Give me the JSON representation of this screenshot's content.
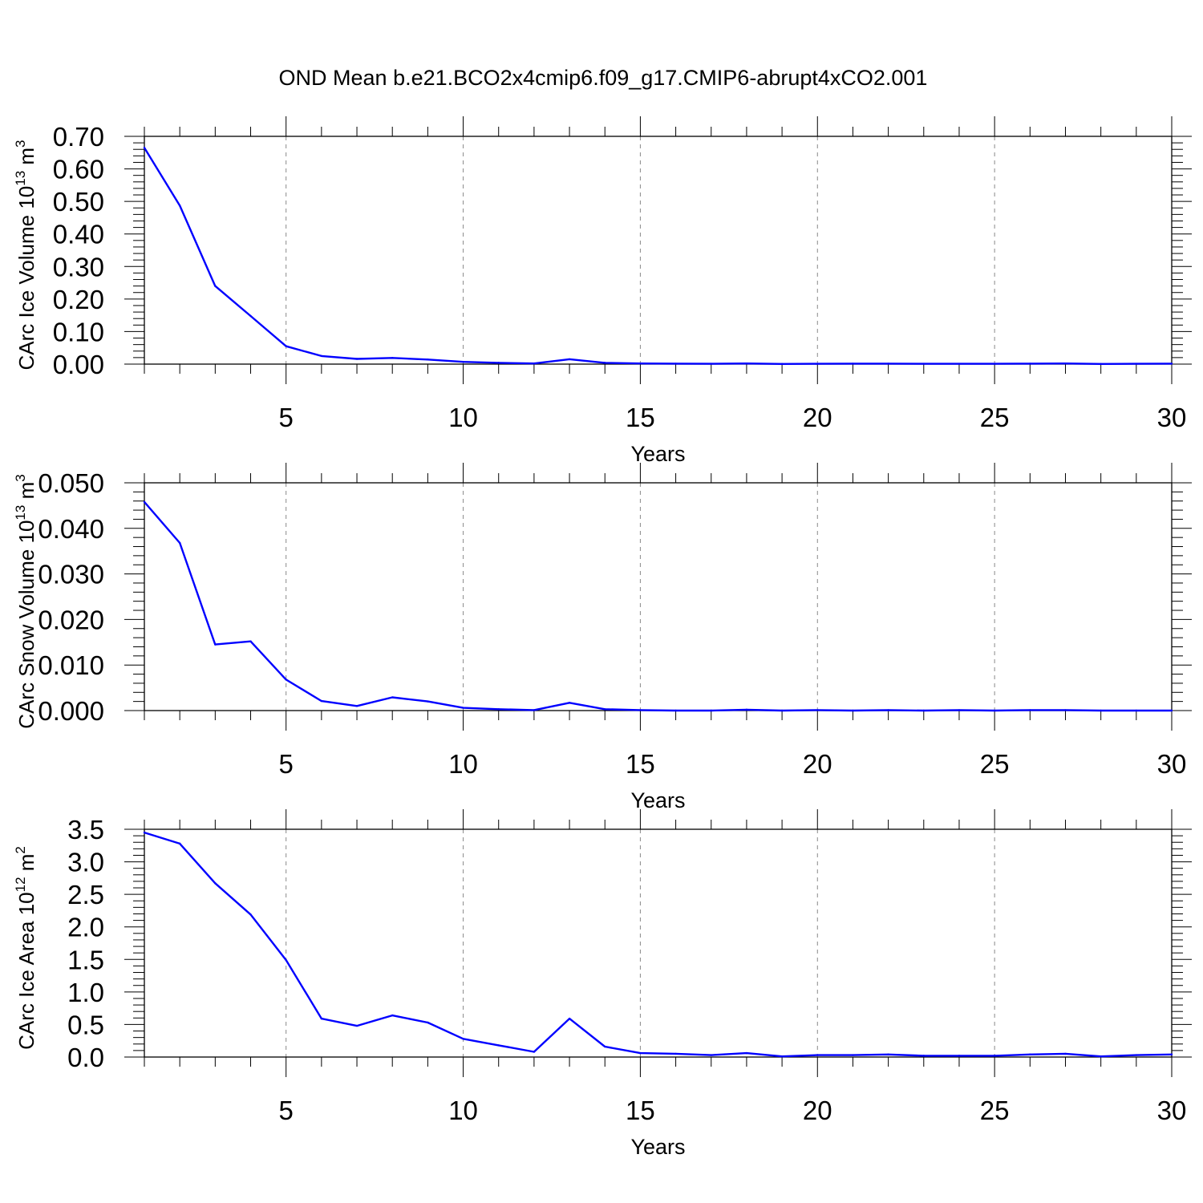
{
  "figure": {
    "title": "OND Mean b.e21.BCO2x4cmip6.f09_g17.CMIP6-abrupt4xCO2.001"
  },
  "chart_data": [
    {
      "type": "line",
      "title": "",
      "xlabel": "Years",
      "ylabel": {
        "text": "CArc Ice Volume 10",
        "sup": "13",
        "unit": " m",
        "unit_sup": "3"
      },
      "xlim": [
        1,
        30
      ],
      "ylim": [
        0,
        0.7
      ],
      "x_ticks": [
        5,
        10,
        15,
        20,
        25,
        30
      ],
      "y_ticks": [
        "0.00",
        "0.10",
        "0.20",
        "0.30",
        "0.40",
        "0.50",
        "0.60",
        "0.70"
      ],
      "grid": "vertical dashed at major x ticks",
      "line_color": "#0000ff",
      "series": [
        {
          "x": [
            1,
            2,
            3,
            4,
            5,
            6,
            7,
            8,
            9,
            10,
            11,
            12,
            13,
            14,
            15,
            16,
            17,
            18,
            19,
            20,
            21,
            22,
            23,
            24,
            25,
            26,
            27,
            28,
            29,
            30
          ],
          "values": [
            0.665,
            0.487,
            0.24,
            0.148,
            0.055,
            0.025,
            0.016,
            0.019,
            0.014,
            0.007,
            0.004,
            0.002,
            0.015,
            0.004,
            0.002,
            0.0015,
            0.001,
            0.002,
            0.0005,
            0.001,
            0.0015,
            0.0015,
            0.001,
            0.001,
            0.001,
            0.0015,
            0.002,
            0.0005,
            0.001,
            0.0015
          ]
        }
      ]
    },
    {
      "type": "line",
      "title": "",
      "xlabel": "Years",
      "ylabel": {
        "text": "CArc Snow Volume 10",
        "sup": "13",
        "unit": " m",
        "unit_sup": "3"
      },
      "xlim": [
        1,
        30
      ],
      "ylim": [
        0,
        0.05
      ],
      "x_ticks": [
        5,
        10,
        15,
        20,
        25,
        30
      ],
      "y_ticks": [
        "0.000",
        "0.010",
        "0.020",
        "0.030",
        "0.040",
        "0.050"
      ],
      "grid": "vertical dashed at major x ticks",
      "line_color": "#0000ff",
      "series": [
        {
          "x": [
            1,
            2,
            3,
            4,
            5,
            6,
            7,
            8,
            9,
            10,
            11,
            12,
            13,
            14,
            15,
            16,
            17,
            18,
            19,
            20,
            21,
            22,
            23,
            24,
            25,
            26,
            27,
            28,
            29,
            30
          ],
          "values": [
            0.0458,
            0.0368,
            0.0145,
            0.0152,
            0.0068,
            0.0021,
            0.001,
            0.0029,
            0.002,
            0.0006,
            0.0003,
            0.0001,
            0.0017,
            0.0003,
            0.0001,
            0.0,
            0.0,
            0.0002,
            0.0,
            0.0001,
            0.0,
            0.0001,
            0.0,
            0.0001,
            0.0,
            0.0001,
            0.0001,
            0.0,
            0.0,
            0.0
          ]
        }
      ]
    },
    {
      "type": "line",
      "title": "",
      "xlabel": "Years",
      "ylabel": {
        "text": "CArc Ice Area 10",
        "sup": "12",
        "unit": " m",
        "unit_sup": "2"
      },
      "xlim": [
        1,
        30
      ],
      "ylim": [
        0,
        3.5
      ],
      "x_ticks": [
        5,
        10,
        15,
        20,
        25,
        30
      ],
      "y_ticks": [
        "0.0",
        "0.5",
        "1.0",
        "1.5",
        "2.0",
        "2.5",
        "3.0",
        "3.5"
      ],
      "grid": "vertical dashed at major x ticks",
      "line_color": "#0000ff",
      "series": [
        {
          "x": [
            1,
            2,
            3,
            4,
            5,
            6,
            7,
            8,
            9,
            10,
            11,
            12,
            13,
            14,
            15,
            16,
            17,
            18,
            19,
            20,
            21,
            22,
            23,
            24,
            25,
            26,
            27,
            28,
            29,
            30
          ],
          "values": [
            3.45,
            3.28,
            2.67,
            2.19,
            1.49,
            0.59,
            0.48,
            0.64,
            0.53,
            0.28,
            0.18,
            0.08,
            0.59,
            0.16,
            0.06,
            0.05,
            0.03,
            0.06,
            0.01,
            0.03,
            0.03,
            0.04,
            0.02,
            0.02,
            0.02,
            0.04,
            0.05,
            0.01,
            0.03,
            0.04
          ]
        }
      ]
    }
  ]
}
